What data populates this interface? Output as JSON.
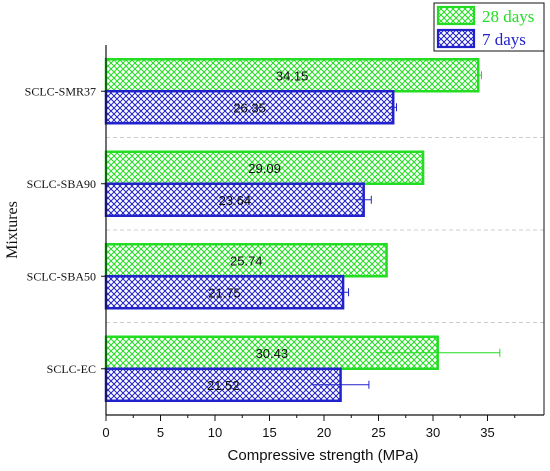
{
  "chart_data": {
    "type": "bar",
    "orientation": "horizontal",
    "categories": [
      "SCLC-SMR37",
      "SCLC-SBA90",
      "SCLC-SBA50",
      "SCLC-EC"
    ],
    "series": [
      {
        "name": "28 days",
        "color": "#22dd22",
        "values": [
          34.15,
          29.09,
          25.74,
          30.43
        ],
        "errors": [
          0.3,
          0.0,
          0.0,
          5.7
        ]
      },
      {
        "name": "7 days",
        "color": "#2222cc",
        "values": [
          26.35,
          23.64,
          21.75,
          21.52
        ],
        "errors": [
          0.3,
          0.7,
          0.5,
          2.6
        ]
      }
    ],
    "xlabel": "Compressive strength (MPa)",
    "ylabel": "Mixtures",
    "xlim": [
      0,
      40
    ],
    "xticks": [
      0,
      5,
      10,
      15,
      20,
      25,
      30,
      35
    ],
    "legend_position": "top-right",
    "grid": "horizontal-dashed"
  }
}
